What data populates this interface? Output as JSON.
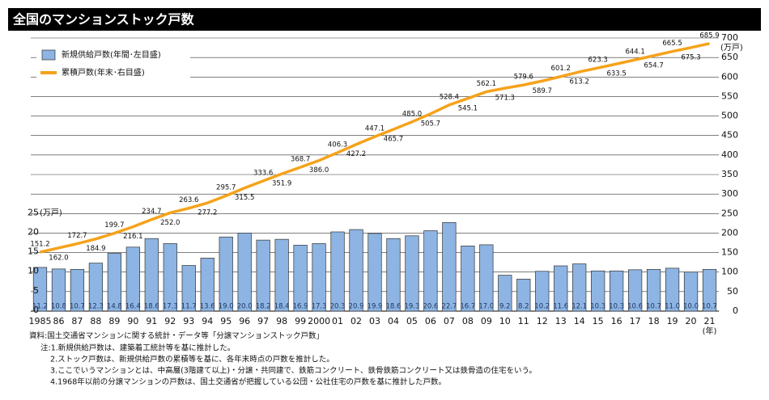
{
  "chart_data": {
    "type": "bar",
    "title": "全国のマンションストック戸数",
    "categories": [
      "1985",
      "86",
      "87",
      "88",
      "89",
      "90",
      "91",
      "92",
      "93",
      "94",
      "95",
      "96",
      "97",
      "98",
      "99",
      "2000",
      "01",
      "02",
      "03",
      "04",
      "05",
      "06",
      "07",
      "08",
      "09",
      "10",
      "11",
      "12",
      "13",
      "14",
      "15",
      "16",
      "17",
      "18",
      "19",
      "20",
      "21"
    ],
    "series": [
      {
        "name": "新規供給戸数(年間･左目盛)",
        "type": "bar",
        "color": "#8db4e2",
        "values": [
          11.2,
          10.8,
          10.7,
          12.3,
          14.8,
          16.4,
          18.6,
          17.3,
          11.7,
          13.6,
          19.0,
          20.0,
          18.2,
          18.4,
          16.9,
          17.3,
          20.3,
          20.9,
          19.9,
          18.6,
          19.3,
          20.6,
          22.7,
          16.7,
          17.0,
          9.2,
          8.2,
          10.2,
          11.6,
          12.1,
          10.3,
          10.3,
          10.6,
          10.7,
          11.0,
          10.0,
          10.7
        ],
        "value_labels": [
          "11.2",
          "10.8",
          "10.7",
          "12.3",
          "14.8",
          "16.4",
          "18.6",
          "17.3",
          "11.7",
          "13.6",
          "19.0",
          "20.0",
          "18.2",
          "18.4",
          "16.9",
          "17.3",
          "20.3",
          "20.9",
          "19.9",
          "18.6",
          "19.3",
          "20.6",
          "22.7",
          "16.7",
          "17.0",
          "9.2",
          "8.2",
          "10.2",
          "11.6",
          "12.1",
          "10.3",
          "10.3",
          "10.6",
          "10.7",
          "11.0",
          "10.0",
          "10.7"
        ]
      },
      {
        "name": "累積戸数(年末･右目盛)",
        "type": "line",
        "axis": "y2",
        "color": "#f5a21b",
        "values": [
          151.2,
          162.0,
          172.7,
          184.9,
          199.7,
          216.1,
          234.7,
          252.0,
          263.6,
          277.2,
          295.7,
          315.5,
          333.6,
          351.9,
          368.7,
          386.0,
          406.3,
          427.2,
          447.1,
          465.7,
          485.0,
          505.7,
          528.4,
          545.1,
          562.1,
          571.3,
          579.6,
          589.7,
          601.2,
          613.2,
          623.3,
          633.5,
          644.1,
          654.7,
          665.5,
          675.3,
          685.9
        ],
        "value_labels": [
          "151.2",
          "162.0",
          "172.7",
          "184.9",
          "199.7",
          "216.1",
          "234.7",
          "252.0",
          "263.6",
          "277.2",
          "295.7",
          "315.5",
          "333.6",
          "351.9",
          "368.7",
          "386.0",
          "406.3",
          "427.2",
          "447.1",
          "465.7",
          "485.0",
          "505.7",
          "528.4",
          "545.1",
          "562.1",
          "571.3",
          "579.6",
          "589.7",
          "601.2",
          "613.2",
          "623.3",
          "633.5",
          "644.1",
          "654.7",
          "665.5",
          "675.3",
          "685.9"
        ]
      }
    ],
    "ylim": [
      0,
      70
    ],
    "yticks": [
      0,
      5,
      10,
      15,
      20,
      25
    ],
    "y_unit": "(万戸)",
    "y2lim": [
      0,
      700
    ],
    "y2ticks": [
      0,
      50,
      100,
      150,
      200,
      250,
      300,
      350,
      400,
      450,
      500,
      550,
      600,
      650,
      700
    ],
    "y2_unit": "(万戸)",
    "x_unit": "(年)",
    "grid": true
  },
  "source": "資料:国土交通省マンションに関する統計・データ等「分譲マンションストック戸数」",
  "notes": [
    "注:1.新規供給戸数は、建築着工統計等を基に推計した。",
    "2.ストック戸数は、新規供給戸数の累積等を基に、各年末時点の戸数を推計した。",
    "3.ここでいうマンションとは、中高層(3階建て以上)・分譲・共同建で、鉄筋コンクリート、鉄骨鉄筋コンクリート又は鉄骨造の住宅をいう。",
    "4.1968年以前の分譲マンションの戸数は、国土交通省が把握している公団・公社住宅の戸数を基に推計した戸数。"
  ]
}
